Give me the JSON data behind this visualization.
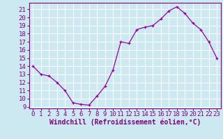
{
  "hours": [
    0,
    1,
    2,
    3,
    4,
    5,
    6,
    7,
    8,
    9,
    10,
    11,
    12,
    13,
    14,
    15,
    16,
    17,
    18,
    19,
    20,
    21,
    22,
    23
  ],
  "temps": [
    14,
    13,
    12.8,
    12,
    11,
    9.5,
    9.3,
    9.2,
    10.3,
    11.5,
    13.5,
    17,
    16.8,
    18.5,
    18.8,
    19.0,
    19.8,
    20.8,
    21.3,
    20.5,
    19.3,
    18.5,
    17.0,
    15.0
  ],
  "line_color": "#990099",
  "marker": "+",
  "bg_color": "#cce8f0",
  "grid_color": "#ffffff",
  "xlabel": "Windchill (Refroidissement éolien,°C)",
  "ylim": [
    8.8,
    21.8
  ],
  "xlim": [
    -0.5,
    23.5
  ],
  "yticks": [
    9,
    10,
    11,
    12,
    13,
    14,
    15,
    16,
    17,
    18,
    19,
    20,
    21
  ],
  "xticks": [
    0,
    1,
    2,
    3,
    4,
    5,
    6,
    7,
    8,
    9,
    10,
    11,
    12,
    13,
    14,
    15,
    16,
    17,
    18,
    19,
    20,
    21,
    22,
    23
  ],
  "font_color": "#800080",
  "tick_font_size": 6.5,
  "label_font_size": 7.0
}
